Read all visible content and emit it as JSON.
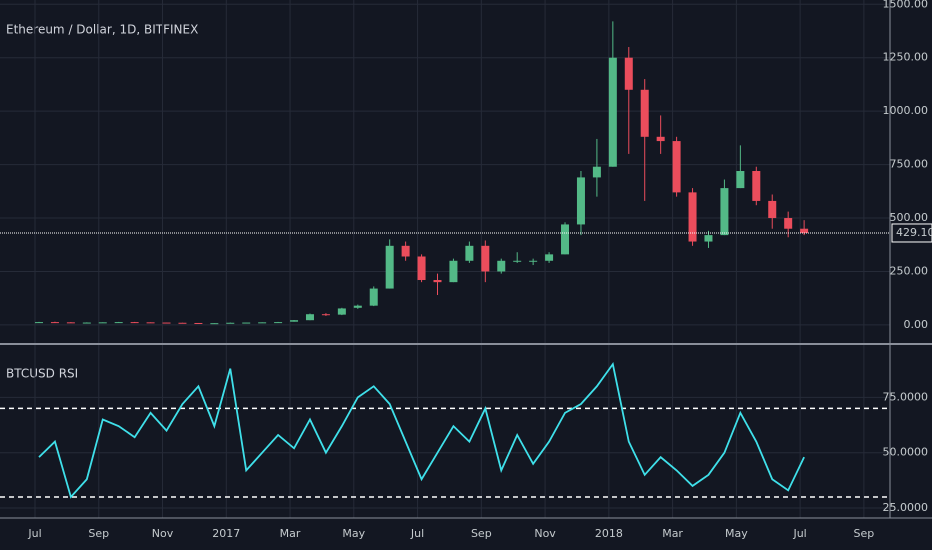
{
  "chart_data": [
    {
      "type": "candlestick",
      "title": "Ethereum / Dollar, 1D, BITFINEX",
      "categories": [
        "Jul",
        null,
        null,
        null,
        "Sep",
        null,
        null,
        null,
        "Nov",
        null,
        null,
        null,
        "2017",
        null,
        null,
        null,
        "Mar",
        null,
        null,
        null,
        "May",
        null,
        null,
        null,
        "Jul",
        null,
        null,
        null,
        "Sep",
        null,
        null,
        null,
        "Nov",
        null,
        null,
        null,
        "2018",
        null,
        null,
        null,
        "Mar",
        null,
        null,
        null,
        "May",
        null,
        null,
        null,
        "Jul",
        null,
        null,
        null,
        "Sep",
        null
      ],
      "open": [
        12,
        13,
        12,
        11,
        11,
        12,
        13,
        12,
        11,
        10,
        9,
        8,
        8,
        10,
        11,
        12,
        15,
        22,
        50,
        48,
        80,
        90,
        170,
        370,
        320,
        210,
        200,
        300,
        370,
        250,
        300,
        300,
        300,
        330,
        470,
        690,
        740,
        1250,
        1100,
        880,
        860,
        620,
        390,
        420,
        640,
        720,
        580,
        500,
        450,
        null,
        null,
        null,
        null,
        null
      ],
      "high": [
        14,
        15,
        13,
        12,
        12,
        14,
        14,
        12,
        11,
        10,
        9,
        8,
        11,
        11,
        12,
        14,
        23,
        53,
        55,
        80,
        95,
        180,
        400,
        390,
        330,
        240,
        310,
        390,
        395,
        310,
        340,
        310,
        340,
        480,
        720,
        870,
        1420,
        1300,
        1150,
        980,
        880,
        640,
        440,
        680,
        840,
        740,
        610,
        530,
        490,
        null,
        null,
        null,
        null,
        null
      ],
      "low": [
        11,
        11,
        9,
        10,
        11,
        12,
        11,
        11,
        10,
        8,
        7,
        7,
        8,
        10,
        11,
        12,
        15,
        22,
        42,
        46,
        75,
        88,
        170,
        300,
        200,
        140,
        200,
        290,
        200,
        240,
        290,
        280,
        290,
        330,
        420,
        600,
        740,
        800,
        580,
        800,
        600,
        370,
        360,
        420,
        640,
        560,
        450,
        410,
        420,
        null,
        null,
        null,
        null,
        null
      ],
      "close": [
        13,
        12,
        11,
        11,
        12,
        13,
        12,
        11,
        10,
        9,
        8,
        8,
        10,
        11,
        12,
        13,
        22,
        50,
        48,
        77,
        90,
        170,
        370,
        320,
        210,
        200,
        300,
        370,
        250,
        300,
        300,
        300,
        330,
        470,
        690,
        740,
        1250,
        1100,
        880,
        860,
        620,
        390,
        420,
        640,
        720,
        580,
        500,
        450,
        430,
        null,
        null,
        null,
        null,
        null
      ],
      "last_label": "429.10",
      "up_color": "#53b987",
      "down_color": "#eb4d5c",
      "ylim": [
        -80,
        1520
      ],
      "yticks": [
        {
          "value": 0,
          "label": "0.00"
        },
        {
          "value": 250,
          "label": "250.00"
        },
        {
          "value": 500,
          "label": "500.00"
        },
        {
          "value": 750,
          "label": "750.00"
        },
        {
          "value": 1000,
          "label": "1000.00"
        },
        {
          "value": 1250,
          "label": "1250.00"
        },
        {
          "value": 1500,
          "label": "1500.00"
        }
      ],
      "grid": true
    },
    {
      "type": "line",
      "title": "BTCUSD RSI",
      "color": "#3fe0ea",
      "values": [
        48,
        55,
        30,
        38,
        65,
        62,
        57,
        68,
        60,
        72,
        80,
        62,
        88,
        42,
        50,
        58,
        52,
        65,
        50,
        62,
        75,
        80,
        72,
        55,
        38,
        50,
        62,
        55,
        70,
        42,
        58,
        45,
        55,
        68,
        72,
        80,
        90,
        55,
        40,
        48,
        42,
        35,
        40,
        50,
        68,
        55,
        38,
        33,
        48,
        null,
        null,
        null,
        null,
        null
      ],
      "levels": [
        70,
        30
      ],
      "ylim": [
        20.5,
        98.2
      ],
      "yticks": [
        {
          "value": 25,
          "label": "25.0000"
        },
        {
          "value": 50,
          "label": "50.0000"
        },
        {
          "value": 75,
          "label": "75.0000"
        }
      ],
      "grid": true
    }
  ]
}
